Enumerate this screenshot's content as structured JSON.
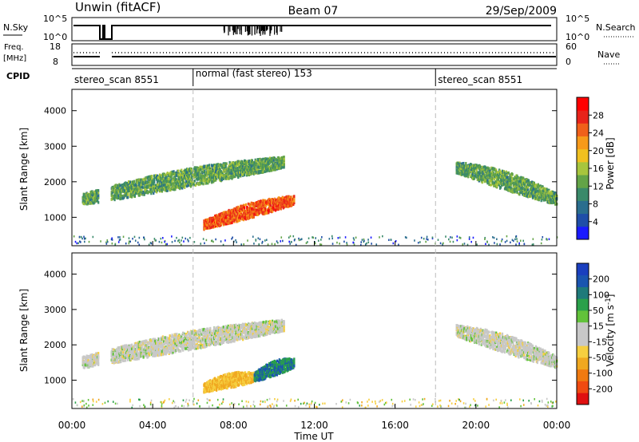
{
  "header": {
    "station": "Unwin (fitACF)",
    "beam": "Beam 07",
    "date": "29/Sep/2009"
  },
  "top_panels": {
    "nsky_label": "N.Sky",
    "nsearch_label": "N.Search",
    "nsky_ticks": [
      "10^5",
      "10^0"
    ],
    "nsearch_ticks": [
      "10^5",
      "10^0"
    ],
    "freq_label_line1": "Freq.",
    "freq_label_line2": "[MHz]",
    "freq_ticks": [
      "18",
      "8"
    ],
    "nave_label": "Nave",
    "nave_ticks": [
      "60",
      "0"
    ],
    "cpid_label": "CPID",
    "cpid_segments": [
      {
        "text": "stereo_scan 8551",
        "start_hour": 0
      },
      {
        "text": "normal (fast stereo) 153",
        "start_hour": 6
      },
      {
        "text": "stereo_scan 8551",
        "start_hour": 18
      }
    ]
  },
  "x_axis": {
    "label": "Time UT",
    "ticks": [
      "00:00",
      "04:00",
      "08:00",
      "12:00",
      "16:00",
      "20:00",
      "00:00"
    ],
    "range_hours": [
      0,
      24
    ]
  },
  "colors": {
    "power_scale": [
      "#1a1aff",
      "#1f4ea8",
      "#2a6e8e",
      "#3a8a6a",
      "#63a447",
      "#a7c53d",
      "#f0c020",
      "#f79a1a",
      "#f0601a",
      "#e8231a",
      "#ff0000"
    ],
    "velocity_scale": [
      "#e01010",
      "#f04a10",
      "#f07a10",
      "#f0a820",
      "#f6cf40",
      "#c8c8c8",
      "#c8c8c8",
      "#62c23a",
      "#2aa04a",
      "#1f7a7a",
      "#1a55b0",
      "#1a3fbf"
    ],
    "ground_scatter": "#aaaaaa"
  },
  "chart_data": [
    {
      "type": "heatmap",
      "name": "power",
      "ylabel": "Slant Range [km]",
      "xlabel": "",
      "y_ticks": [
        1000,
        2000,
        3000,
        4000
      ],
      "ylim": [
        200,
        4600
      ],
      "colorbar": {
        "label": "Power [dB]",
        "ticks": [
          4,
          8,
          12,
          16,
          20,
          24,
          28
        ],
        "range": [
          0,
          32
        ]
      },
      "features": [
        {
          "feature": "scatter band",
          "x_hours": [
            0.5,
            10.5
          ],
          "range_km_start": [
            1400,
            2450
          ],
          "value_db": 12
        },
        {
          "feature": "strong echo band",
          "x_hours": [
            6.5,
            11.0
          ],
          "range_km_start": [
            700,
            1400
          ],
          "value_db": 26
        },
        {
          "feature": "evening band",
          "x_hours": [
            19.0,
            24.0
          ],
          "range_km_start": [
            2300,
            1400
          ],
          "value_db": 12
        }
      ]
    },
    {
      "type": "heatmap",
      "name": "velocity",
      "ylabel": "Slant Range [km]",
      "xlabel": "Time UT",
      "y_ticks": [
        1000,
        2000,
        3000,
        4000
      ],
      "ylim": [
        200,
        4600
      ],
      "colorbar": {
        "label": "Velocity [m s^-1]",
        "ticks": [
          -200,
          -100,
          -50,
          -15,
          15,
          50,
          100,
          200
        ],
        "range": [
          -250,
          250
        ]
      },
      "features": [
        {
          "feature": "ground scatter band",
          "x_hours": [
            0.5,
            10.5
          ],
          "range_km_start": [
            1400,
            2450
          ],
          "value_ms": 0
        },
        {
          "feature": "negative velocity echoes",
          "x_hours": [
            6.5,
            9.0
          ],
          "range_km_start": [
            700,
            1000
          ],
          "value_ms": -50
        },
        {
          "feature": "positive velocity echoes",
          "x_hours": [
            9.0,
            11.0
          ],
          "range_km_start": [
            1000,
            1400
          ],
          "value_ms": 100
        },
        {
          "feature": "evening ground scatter",
          "x_hours": [
            19.0,
            24.0
          ],
          "range_km_start": [
            2300,
            1400
          ],
          "value_ms": 0
        }
      ]
    }
  ]
}
